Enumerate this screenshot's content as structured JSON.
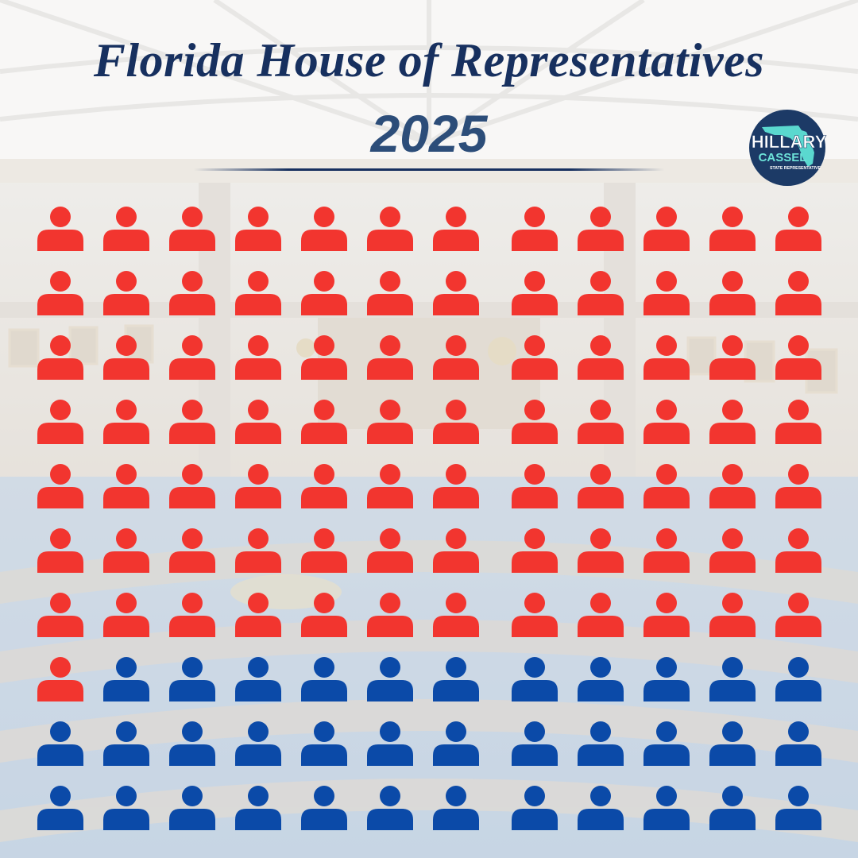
{
  "header": {
    "title": "Florida House of Representatives",
    "year": "2025"
  },
  "logo": {
    "name_line1": "HILLARY",
    "name_line2": "CASSEL",
    "subtitle": "STATE REPRESENTATIVE",
    "colors": {
      "circle": "#1c3a66",
      "state": "#5ee0d5",
      "text": "#ffffff",
      "accent": "#6de3d9"
    }
  },
  "colors": {
    "republican": "#f2352f",
    "democrat": "#0b4aa8",
    "title": "#17305f",
    "year": "#2c4d79"
  },
  "chart_data": {
    "type": "table",
    "title": "",
    "columns": 12,
    "rows": 10,
    "order": "row-major",
    "series": [
      {
        "name": "",
        "values": [
          85
        ],
        "color": "#f2352f"
      },
      {
        "name": "",
        "values": [
          35
        ],
        "color": "#0b4aa8"
      }
    ],
    "total": 120
  }
}
